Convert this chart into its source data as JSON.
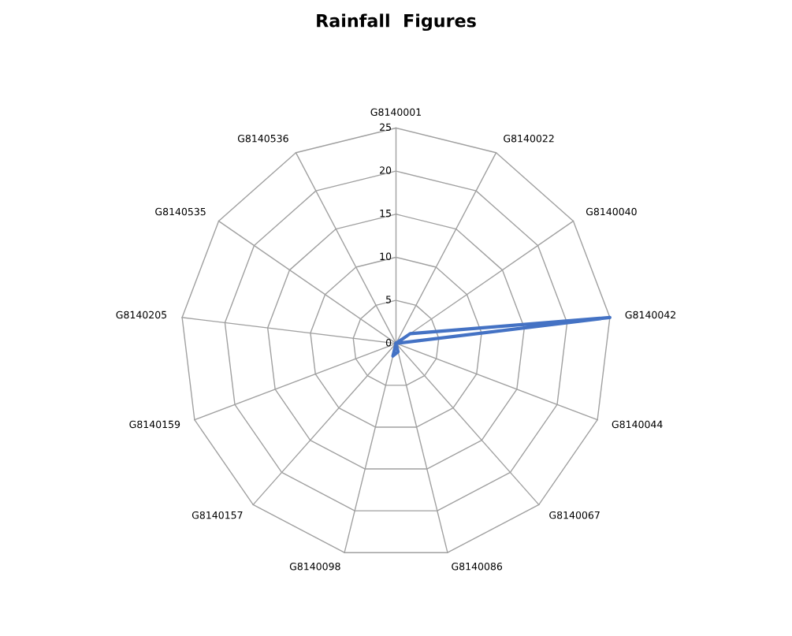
{
  "chart_data": {
    "type": "radar",
    "title": "Rainfall  Figures",
    "categories": [
      "G8140001",
      "G8140022",
      "G8140040",
      "G8140042",
      "G8140044",
      "G8140067",
      "G8140086",
      "G8140098",
      "G8140157",
      "G8140159",
      "G8140205",
      "G8140535",
      "G8140536"
    ],
    "series": [
      {
        "color": "#4472c4",
        "values": [
          0,
          0,
          2,
          25,
          0,
          0,
          1,
          1.5,
          0,
          0,
          0,
          0,
          0
        ]
      }
    ],
    "ylim": [
      0,
      25
    ],
    "yticks": [
      0,
      5,
      10,
      15,
      20,
      25
    ],
    "grid": true,
    "marker": "none",
    "legend": false
  }
}
